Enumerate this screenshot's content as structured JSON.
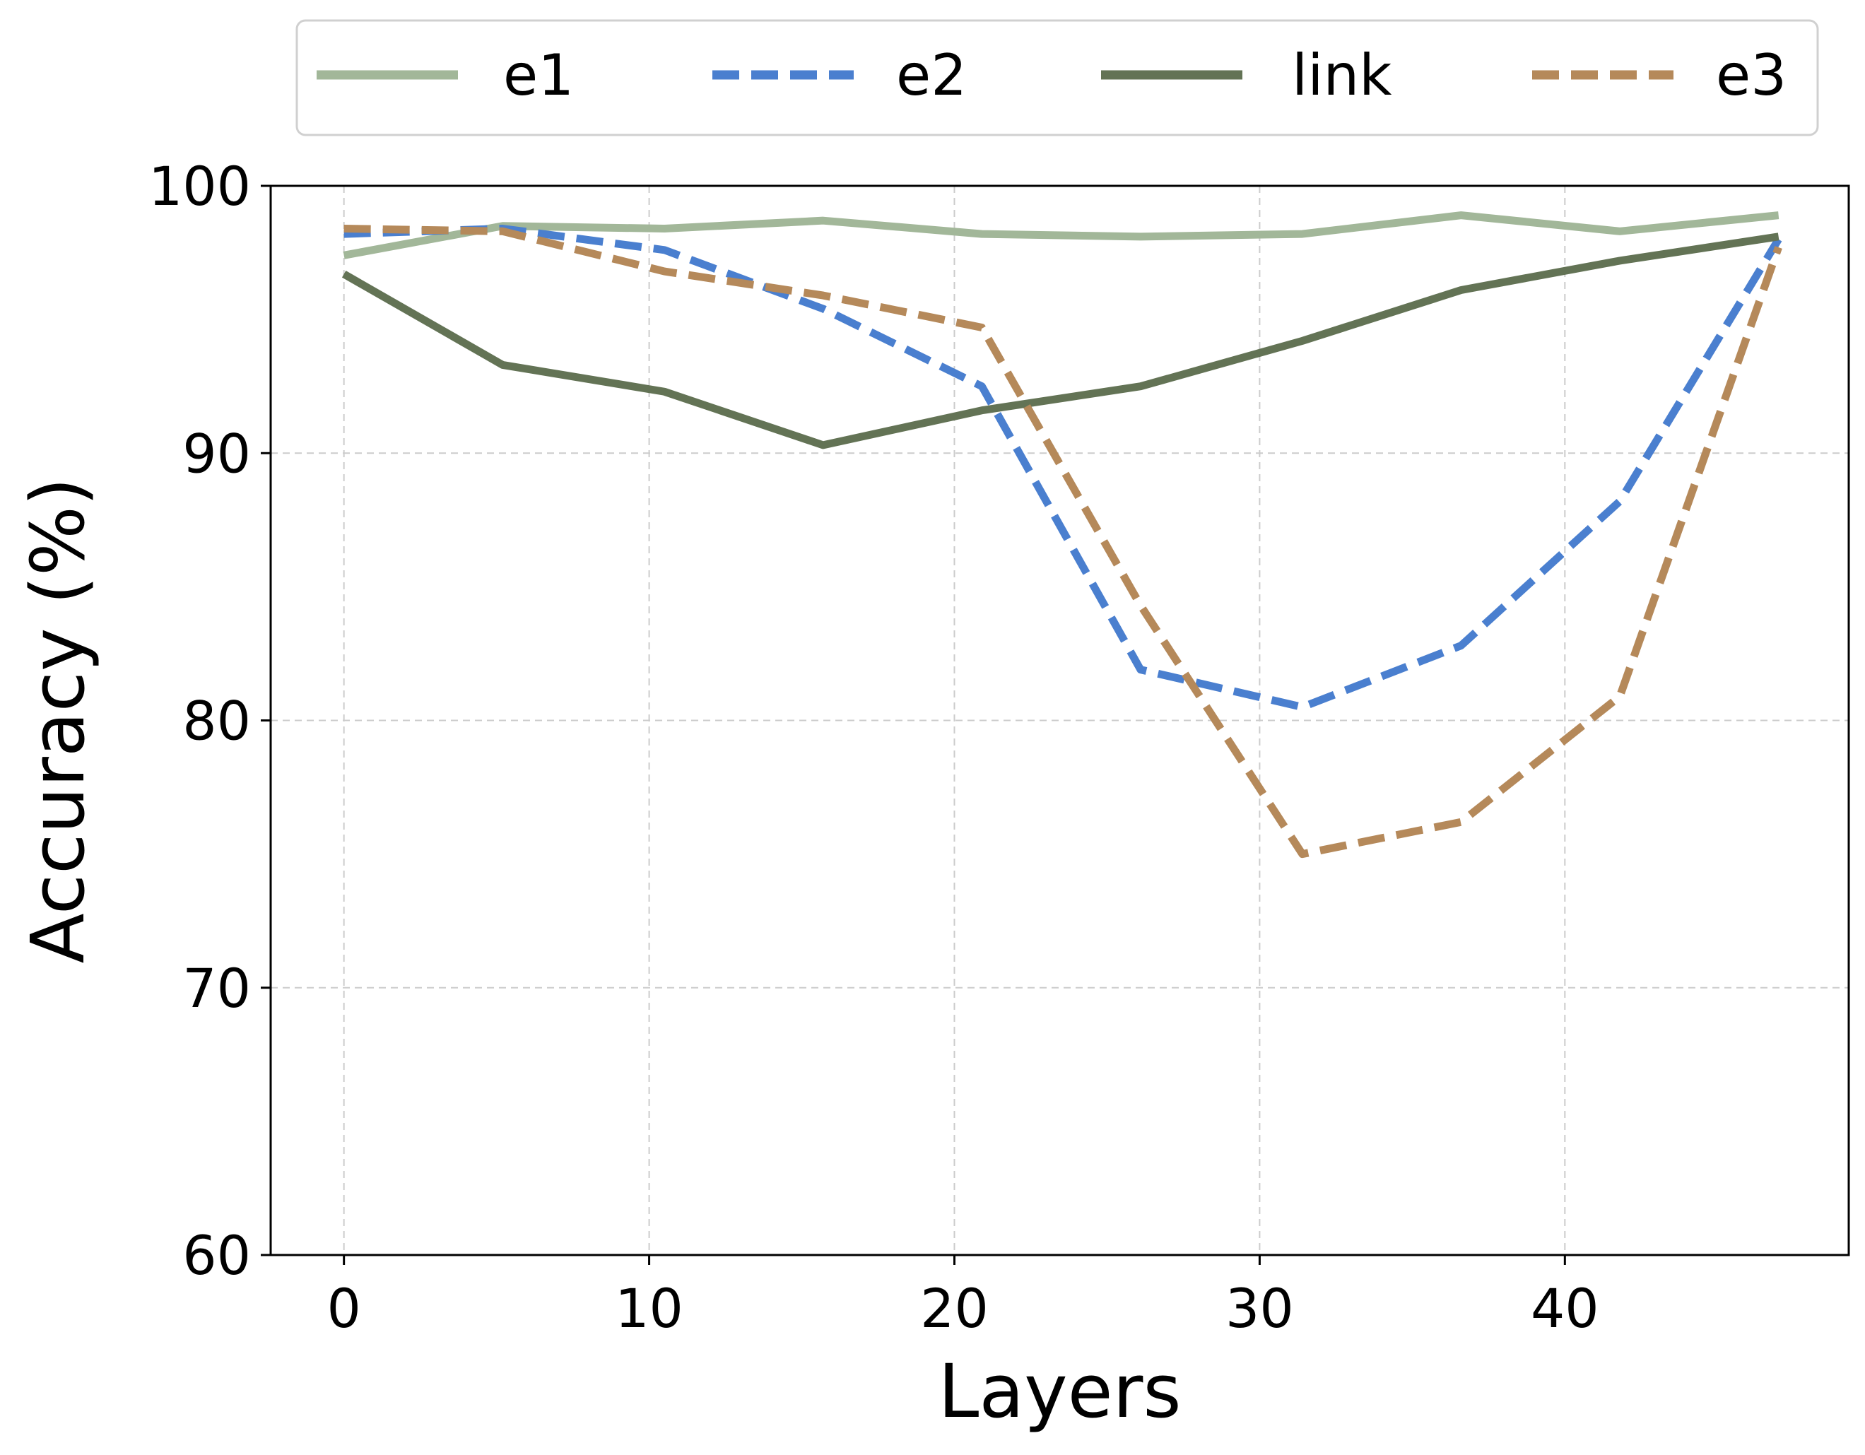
{
  "chart_data": {
    "type": "line",
    "title": "",
    "xlabel": "Layers",
    "ylabel": "Accuracy (%)",
    "xlim": [
      -2.4,
      49.3
    ],
    "ylim": [
      60,
      100
    ],
    "xticks": [
      0,
      10,
      20,
      30,
      40
    ],
    "yticks": [
      60,
      70,
      80,
      90,
      100
    ],
    "grid": true,
    "legend_position": "top",
    "x": [
      0,
      5.2,
      10.5,
      15.7,
      20.9,
      26.1,
      31.4,
      36.6,
      41.8,
      47
    ],
    "series": [
      {
        "name": "e1",
        "color": "#a2b799",
        "dash": "solid",
        "values": [
          97.4,
          98.5,
          98.4,
          98.7,
          98.2,
          98.1,
          98.2,
          98.9,
          98.3,
          98.9
        ]
      },
      {
        "name": "e2",
        "color": "#4a7fcf",
        "dash": "dashed",
        "values": [
          98.2,
          98.4,
          97.6,
          95.4,
          92.5,
          81.9,
          80.5,
          82.8,
          88.2,
          98.0
        ]
      },
      {
        "name": "link",
        "color": "#637355",
        "dash": "solid",
        "values": [
          96.7,
          93.3,
          92.3,
          90.3,
          91.6,
          92.5,
          94.2,
          96.1,
          97.2,
          98.1
        ]
      },
      {
        "name": "e3",
        "color": "#b5895a",
        "dash": "dashed",
        "values": [
          98.4,
          98.3,
          96.8,
          95.9,
          94.7,
          84.3,
          75.0,
          76.2,
          80.9,
          97.7
        ]
      }
    ]
  }
}
